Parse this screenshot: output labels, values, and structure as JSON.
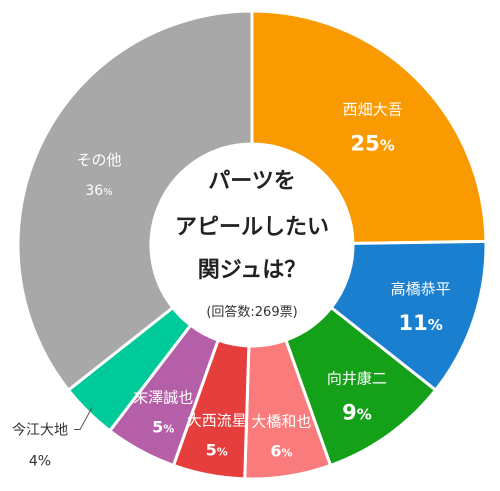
{
  "chart_data": {
    "type": "pie",
    "donut": true,
    "title_lines": [
      "パーツを",
      "アピールしたい",
      "関ジュは？"
    ],
    "subtitle": "(回答数:269票)",
    "slices": [
      {
        "name": "西畑大吾",
        "value": 25,
        "color": "#f99a00"
      },
      {
        "name": "高橋恭平",
        "value": 11,
        "color": "#1a7fcf"
      },
      {
        "name": "向井康二",
        "value": 9,
        "color": "#14a019"
      },
      {
        "name": "大橋和也",
        "value": 6,
        "color": "#fa7b7b"
      },
      {
        "name": "大西流星",
        "value": 5,
        "color": "#e63d3d"
      },
      {
        "name": "末澤誠也",
        "value": 5,
        "color": "#b45fa8"
      },
      {
        "name": "今江大地",
        "value": 4,
        "color": "#00c99a"
      },
      {
        "name": "その他",
        "value": 36,
        "color": "#a8a8a8"
      }
    ],
    "unit": "%"
  }
}
